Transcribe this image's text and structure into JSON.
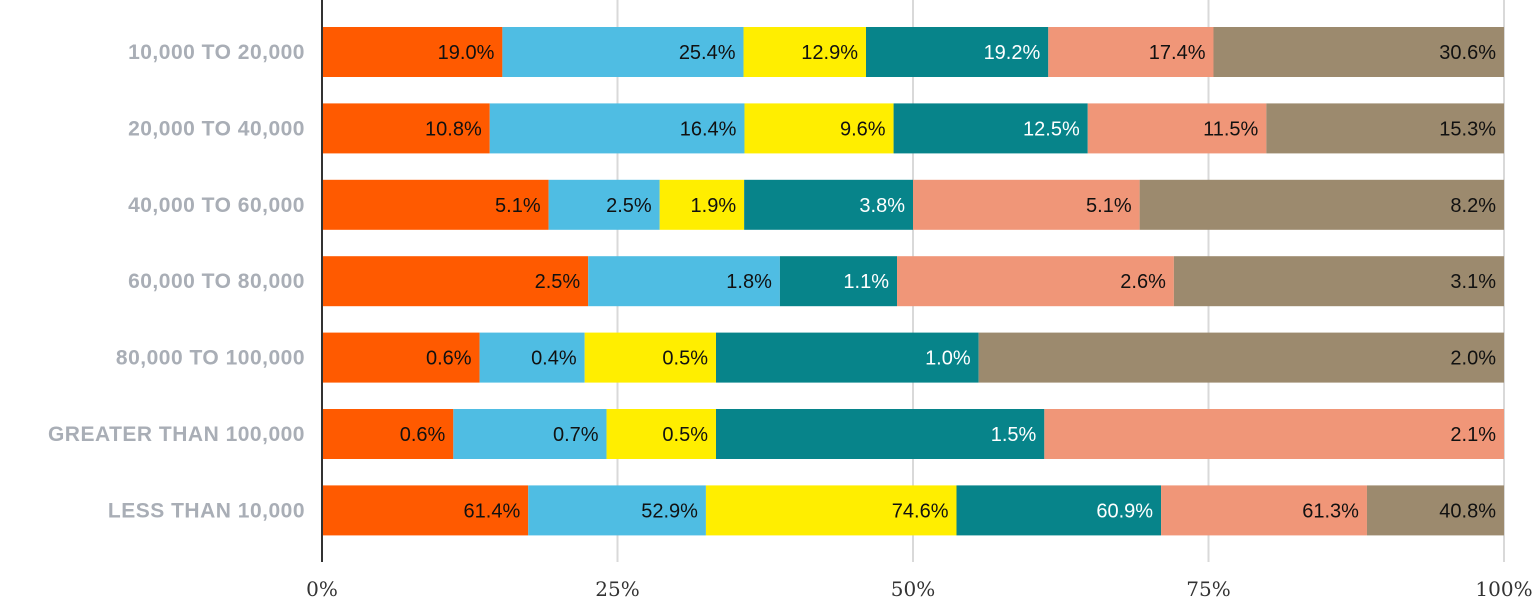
{
  "chart_data": {
    "type": "bar",
    "orientation": "horizontal",
    "stacked": true,
    "normalized": true,
    "categories": [
      "10,000 TO 20,000",
      "20,000 TO 40,000",
      "40,000 TO 60,000",
      "60,000 TO 80,000",
      "80,000 TO 100,000",
      "GREATER THAN 100,000",
      "LESS THAN 10,000"
    ],
    "series": [
      {
        "color": "#FF5A00",
        "label_color": "#111111",
        "values": [
          19.0,
          10.8,
          5.1,
          2.5,
          0.6,
          0.6,
          61.4
        ]
      },
      {
        "color": "#4FBDE3",
        "label_color": "#111111",
        "values": [
          25.4,
          16.4,
          2.5,
          1.8,
          0.4,
          0.7,
          52.9
        ]
      },
      {
        "color": "#FFEE00",
        "label_color": "#111111",
        "values": [
          12.9,
          9.6,
          1.9,
          null,
          0.5,
          0.5,
          74.6
        ]
      },
      {
        "color": "#07848A",
        "label_color": "#ffffff",
        "values": [
          19.2,
          12.5,
          3.8,
          1.1,
          1.0,
          1.5,
          60.9
        ]
      },
      {
        "color": "#F09678",
        "label_color": "#111111",
        "values": [
          17.4,
          11.5,
          5.1,
          2.6,
          null,
          2.1,
          61.3
        ]
      },
      {
        "color": "#9C8A6E",
        "label_color": "#111111",
        "values": [
          30.6,
          15.3,
          8.2,
          3.1,
          2.0,
          null,
          40.8
        ]
      }
    ],
    "value_suffix": "%",
    "xticks": [
      "0%",
      "25%",
      "50%",
      "75%",
      "100%"
    ],
    "xlim": [
      0,
      100
    ],
    "grid": true,
    "legend": "none",
    "title": "",
    "xlabel": "",
    "ylabel": ""
  }
}
